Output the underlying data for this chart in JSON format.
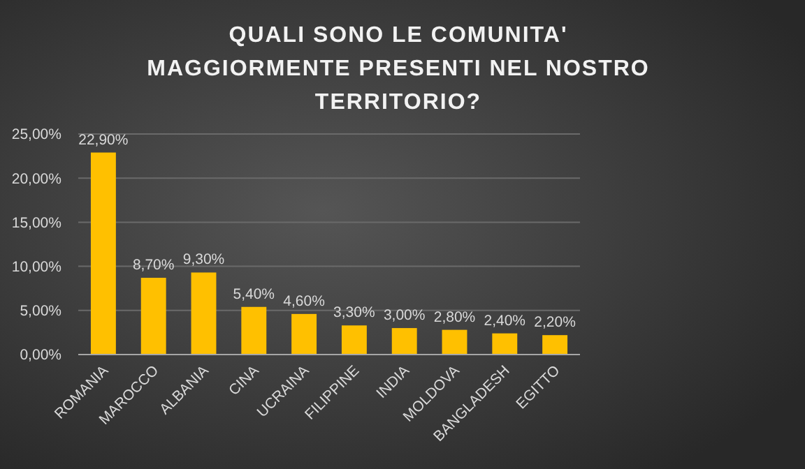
{
  "chart_data": {
    "type": "bar",
    "title": "QUALI SONO LE COMUNITA' MAGGIORMENTE PRESENTI NEL NOSTRO TERRITORIO?",
    "categories": [
      "ROMANIA",
      "MAROCCO",
      "ALBANIA",
      "CINA",
      "UCRAINA",
      "FILIPPINE",
      "INDIA",
      "MOLDOVA",
      "BANGLADESH",
      "EGITTO"
    ],
    "values": [
      22.9,
      8.7,
      9.3,
      5.4,
      4.6,
      3.3,
      3.0,
      2.8,
      2.4,
      2.2
    ],
    "value_labels": [
      "22,90%",
      "8,70%",
      "9,30%",
      "5,40%",
      "4,60%",
      "3,30%",
      "3,00%",
      "2,80%",
      "2,40%",
      "2,20%"
    ],
    "color": "#ffc000",
    "ylim": [
      0,
      25
    ],
    "yticks": [
      {
        "value": 0,
        "label": "0,00%"
      },
      {
        "value": 5,
        "label": "5,00%"
      },
      {
        "value": 10,
        "label": "10,00%"
      },
      {
        "value": 15,
        "label": "15,00%"
      },
      {
        "value": 20,
        "label": "20,00%"
      },
      {
        "value": 25,
        "label": "25,00%"
      }
    ],
    "grid": "y"
  }
}
